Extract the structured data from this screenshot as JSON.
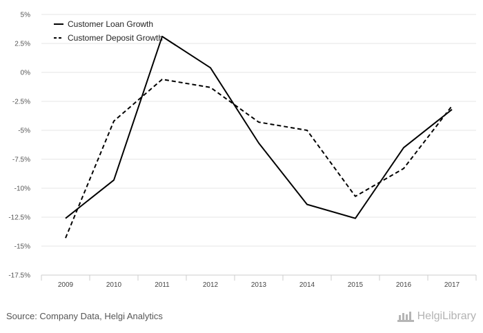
{
  "chart_data": {
    "type": "line",
    "categories": [
      "2009",
      "2010",
      "2011",
      "2012",
      "2013",
      "2014",
      "2015",
      "2016",
      "2017"
    ],
    "series": [
      {
        "name": "Customer Loan Growth",
        "style": "solid",
        "color": "#000000",
        "values": [
          -12.6,
          -9.3,
          3.1,
          0.4,
          -6.1,
          -11.4,
          -12.6,
          -6.5,
          -3.2
        ]
      },
      {
        "name": "Customer Deposit Growth",
        "style": "dashed",
        "color": "#000000",
        "values": [
          -14.3,
          -4.2,
          -0.6,
          -1.3,
          -4.3,
          -5.0,
          -10.7,
          -8.3,
          -2.9
        ]
      }
    ],
    "ylim": [
      -17.5,
      5
    ],
    "yticks": [
      5,
      2.5,
      0,
      -2.5,
      -5,
      -7.5,
      -10,
      -12.5,
      -15,
      -17.5
    ],
    "ytick_labels": [
      "5%",
      "2.5%",
      "0%",
      "-2.5%",
      "-5%",
      "-7.5%",
      "-10%",
      "-12.5%",
      "-15%",
      "-17.5%"
    ],
    "grid": true,
    "legend_position": "top-left",
    "title": "",
    "xlabel": "",
    "ylabel": ""
  },
  "footer": {
    "source": "Source: Company Data, Helgi Analytics",
    "brand": "HelgiLibrary"
  },
  "colors": {
    "grid": "#e6e6e6",
    "axis": "#cccccc",
    "line": "#000000"
  }
}
